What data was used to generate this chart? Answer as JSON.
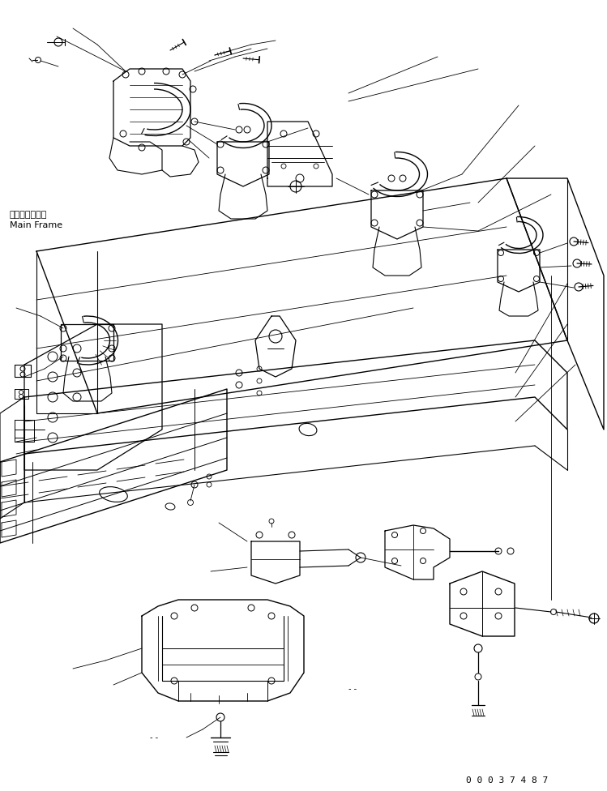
{
  "background_color": "#ffffff",
  "line_color": "#000000",
  "fig_width": 7.49,
  "fig_height": 9.76,
  "dpi": 100,
  "label_main_frame_jp": "メインフレーム",
  "label_main_frame_en": "Main Frame",
  "part_number": "0 0 0 3 7 4 8 7"
}
